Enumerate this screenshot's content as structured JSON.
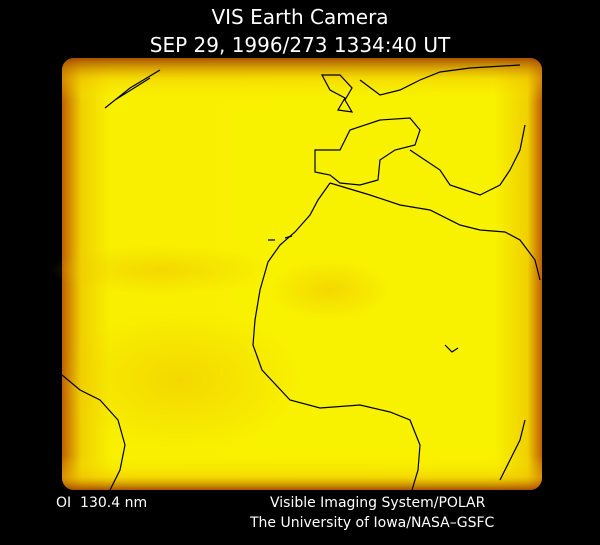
{
  "header": {
    "title": "VIS Earth Camera",
    "timestamp": "SEP 29, 1996/273 1334:40 UT"
  },
  "footer": {
    "wavelength": "OI  130.4 nm",
    "instrument": "Visible Imaging System/POLAR",
    "credit": "The University of Iowa/NASA–GSFC"
  }
}
